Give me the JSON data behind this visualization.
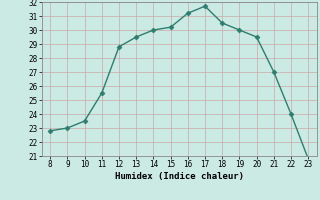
{
  "x": [
    8,
    9,
    10,
    11,
    12,
    13,
    14,
    15,
    16,
    17,
    18,
    19,
    20,
    21,
    22,
    23
  ],
  "y": [
    22.8,
    23.0,
    23.5,
    25.5,
    28.8,
    29.5,
    30.0,
    30.2,
    31.2,
    31.7,
    30.5,
    30.0,
    29.5,
    27.0,
    24.0,
    20.8
  ],
  "xlabel": "Humidex (Indice chaleur)",
  "ylim": [
    21,
    32
  ],
  "xlim": [
    7.5,
    23.5
  ],
  "yticks": [
    21,
    22,
    23,
    24,
    25,
    26,
    27,
    28,
    29,
    30,
    31,
    32
  ],
  "xticks": [
    8,
    9,
    10,
    11,
    12,
    13,
    14,
    15,
    16,
    17,
    18,
    19,
    20,
    21,
    22,
    23
  ],
  "line_color": "#2e7d6e",
  "marker_color": "#2e7d6e",
  "bg_color": "#cceae4",
  "grid_color": "#c8a8a8",
  "border_color": "#888888"
}
